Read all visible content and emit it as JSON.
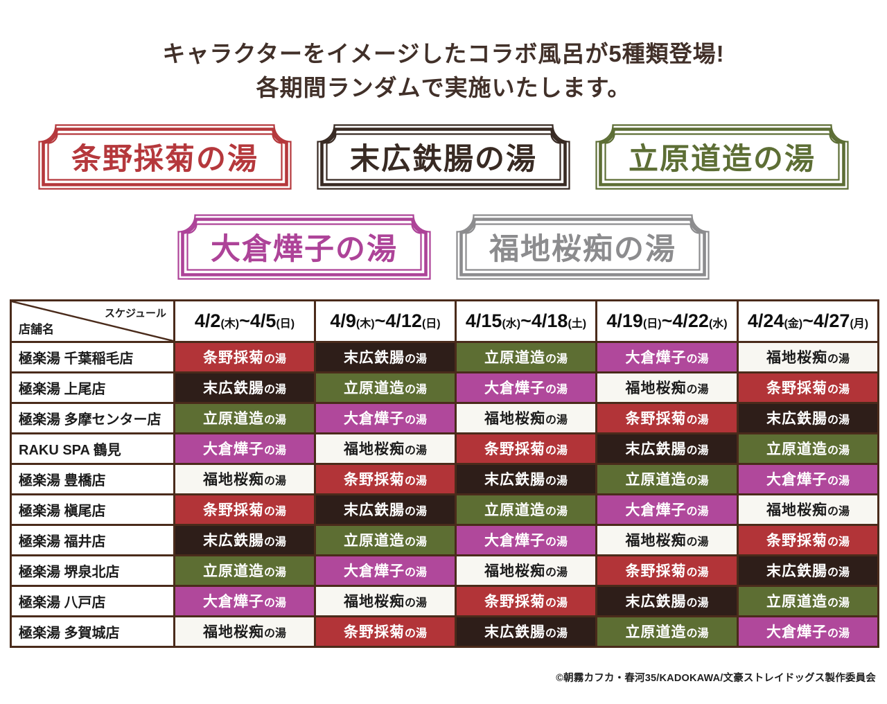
{
  "title": {
    "line1": "キャラクターをイメージしたコラボ風呂が5種類登場!",
    "line2": "各期間ランダムで実施いたします。"
  },
  "baths": [
    {
      "name": "条野採菊の湯",
      "name_main": "条野採菊",
      "name_suffix": "の湯",
      "badge_color": "#b5383c",
      "cell_bg": "#b23438",
      "cell_text": "#ffffff"
    },
    {
      "name": "末広鉄腸の湯",
      "name_main": "末広鉄腸",
      "name_suffix": "の湯",
      "badge_color": "#382a23",
      "cell_bg": "#2e1e19",
      "cell_text": "#ffffff"
    },
    {
      "name": "立原道造の湯",
      "name_main": "立原道造",
      "name_suffix": "の湯",
      "badge_color": "#5d6e35",
      "cell_bg": "#5d6e33",
      "cell_text": "#ffffff"
    },
    {
      "name": "大倉燁子の湯",
      "name_main": "大倉燁子",
      "name_suffix": "の湯",
      "badge_color": "#ad4398",
      "cell_bg": "#b0489b",
      "cell_text": "#ffffff"
    },
    {
      "name": "福地桜痴の湯",
      "name_main": "福地桜痴",
      "name_suffix": "の湯",
      "badge_color": "#8c8c8e",
      "cell_bg": "#f8f7f2",
      "cell_text": "#1c1c1c"
    }
  ],
  "badge_rows": [
    [
      0,
      1,
      2
    ],
    [
      3,
      4
    ]
  ],
  "table": {
    "corner": {
      "top_label": "スケジュール",
      "bottom_label": "店舗名"
    },
    "columns": [
      {
        "start": "4/2",
        "start_day": "(木)",
        "sep": "~",
        "end": "4/5",
        "end_day": "(日)"
      },
      {
        "start": "4/9",
        "start_day": "(木)",
        "sep": "~",
        "end": "4/12",
        "end_day": "(日)"
      },
      {
        "start": "4/15",
        "start_day": "(水)",
        "sep": "~",
        "end": "4/18",
        "end_day": "(土)"
      },
      {
        "start": "4/19",
        "start_day": "(日)",
        "sep": "~",
        "end": "4/22",
        "end_day": "(水)"
      },
      {
        "start": "4/24",
        "start_day": "(金)",
        "sep": "~",
        "end": "4/27",
        "end_day": "(月)"
      }
    ],
    "rows": [
      {
        "store": "極楽湯 千葉稲毛店",
        "baths": [
          0,
          1,
          2,
          3,
          4
        ]
      },
      {
        "store": "極楽湯 上尾店",
        "baths": [
          1,
          2,
          3,
          4,
          0
        ]
      },
      {
        "store": "極楽湯 多摩センター店",
        "baths": [
          2,
          3,
          4,
          0,
          1
        ]
      },
      {
        "store": "RAKU SPA 鶴見",
        "baths": [
          3,
          4,
          0,
          1,
          2
        ]
      },
      {
        "store": "極楽湯 豊橋店",
        "baths": [
          4,
          0,
          1,
          2,
          3
        ]
      },
      {
        "store": "極楽湯 槇尾店",
        "baths": [
          0,
          1,
          2,
          3,
          4
        ]
      },
      {
        "store": "極楽湯 福井店",
        "baths": [
          1,
          2,
          3,
          4,
          0
        ]
      },
      {
        "store": "極楽湯 堺泉北店",
        "baths": [
          2,
          3,
          4,
          0,
          1
        ]
      },
      {
        "store": "極楽湯 八戸店",
        "baths": [
          3,
          4,
          0,
          1,
          2
        ]
      },
      {
        "store": "極楽湯 多賀城店",
        "baths": [
          4,
          0,
          1,
          2,
          3
        ]
      }
    ]
  },
  "footer": {
    "copyright": "©朝霧カフカ・春河35/KADOKAWA/文豪ストレイドッグス製作委員会"
  },
  "colors": {
    "table_border": "#4a2b1b",
    "title_text": "#413029",
    "corner_line": "#4a2b1b"
  }
}
